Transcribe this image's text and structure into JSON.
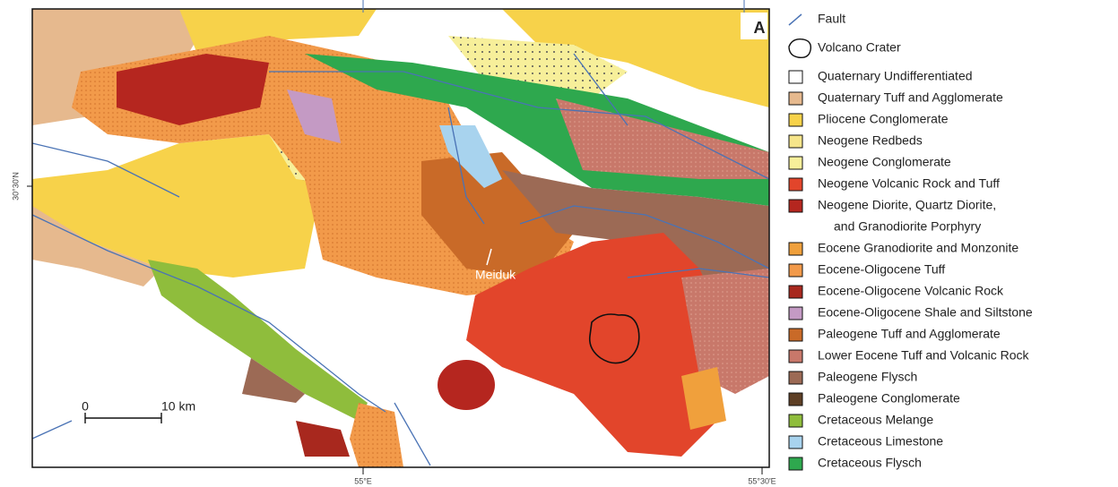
{
  "panel_label": "A",
  "place_label": "Meiduk",
  "scale_bar": {
    "start": "0",
    "end": "10 km"
  },
  "coordinates": {
    "lat": "30°30'N",
    "lon_left": "55°E",
    "lon_right": "55°30'E"
  },
  "legend": {
    "symbols": [
      {
        "label": "Fault",
        "color": "#4a73b5"
      },
      {
        "label": "Volcano Crater",
        "color": "#111111"
      }
    ],
    "units": [
      {
        "lines": [
          "Quaternary Undifferentiated"
        ],
        "color": "#ffffff"
      },
      {
        "lines": [
          "Quaternary Tuff and Agglomerate"
        ],
        "color": "#e6b98e"
      },
      {
        "lines": [
          "Pliocene Conglomerate"
        ],
        "color": "#f7d24a"
      },
      {
        "lines": [
          "Neogene Redbeds"
        ],
        "color": "#f6e58a"
      },
      {
        "lines": [
          "Neogene Conglomerate"
        ],
        "color": "#f7ef9a"
      },
      {
        "lines": [
          "Neogene Volcanic Rock and Tuff"
        ],
        "color": "#e2452b"
      },
      {
        "lines": [
          "Neogene Diorite, Quartz Diorite,",
          "and Granodiorite Porphyry"
        ],
        "color": "#b5261f"
      },
      {
        "lines": [
          "Eocene Granodiorite and Monzonite"
        ],
        "color": "#f0a03c"
      },
      {
        "lines": [
          "Eocene-Oligocene Tuff"
        ],
        "color": "#f29a4a"
      },
      {
        "lines": [
          "Eocene-Oligocene Volcanic Rock"
        ],
        "color": "#a8281e"
      },
      {
        "lines": [
          "Eocene-Oligocene Shale and Siltstone"
        ],
        "color": "#c49ac4"
      },
      {
        "lines": [
          "Paleogene Tuff and Agglomerate"
        ],
        "color": "#c96a28"
      },
      {
        "lines": [
          "Lower Eocene Tuff and Volcanic Rock"
        ],
        "color": "#c8786a"
      },
      {
        "lines": [
          "Paleogene Flysch"
        ],
        "color": "#9c6a55"
      },
      {
        "lines": [
          "Paleogene Conglomerate"
        ],
        "color": "#5e3f25"
      },
      {
        "lines": [
          "Cretaceous Melange"
        ],
        "color": "#8fbd3c"
      },
      {
        "lines": [
          "Cretaceous Limestone"
        ],
        "color": "#a8d3ee"
      },
      {
        "lines": [
          "Cretaceous Flysch"
        ],
        "color": "#2ea84e"
      }
    ]
  }
}
